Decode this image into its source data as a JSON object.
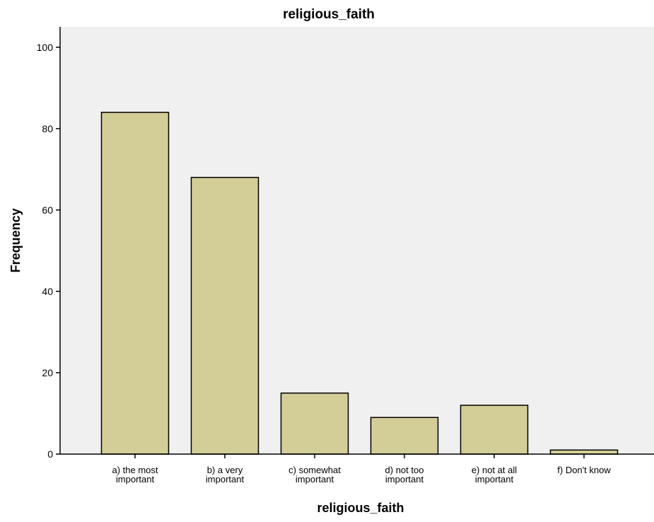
{
  "chart_data": {
    "type": "bar",
    "title": "religious_faith",
    "xlabel": "religious_faith",
    "ylabel": "Frequency",
    "categories": [
      [
        "a) the most",
        "important"
      ],
      [
        "b) a very",
        "important"
      ],
      [
        "c) somewhat",
        "important"
      ],
      [
        "d) not too",
        "important"
      ],
      [
        "e) not at all",
        "important"
      ],
      [
        "f) Don't know"
      ]
    ],
    "values": [
      84,
      68,
      15,
      9,
      12,
      1
    ],
    "ylim": [
      0,
      105
    ],
    "yticks": [
      0,
      20,
      40,
      60,
      80,
      100
    ],
    "grid": false,
    "legend": "none",
    "colors": {
      "bar_fill": "#d3ce97",
      "bar_stroke": "#000000",
      "plot_background": "#f0f0f0",
      "axis": "#000000"
    }
  }
}
